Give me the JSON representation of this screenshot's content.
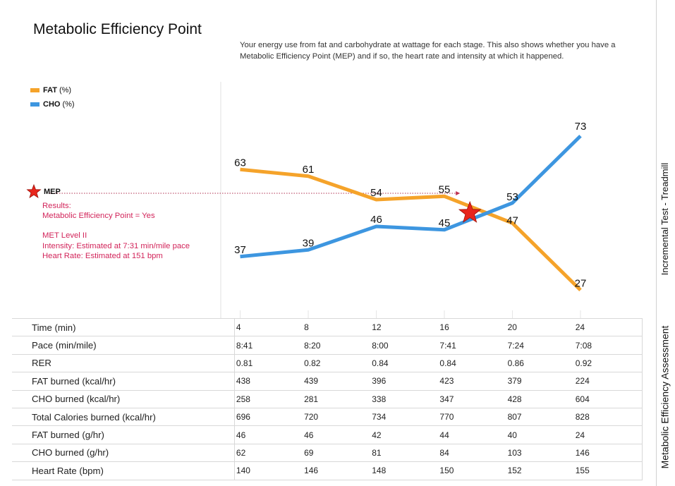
{
  "header": {
    "title": "Metabolic Efficiency Point",
    "subtitle": "Your energy use from fat and carbohydrate at wattage for each stage. This also shows whether you have a Metabolic Efficiency Point (MEP) and if so, the heart rate and intensity at which it happened."
  },
  "legend": {
    "fat_name": "FAT",
    "fat_unit": "(%)",
    "cho_name": "CHO",
    "cho_unit": "(%)"
  },
  "mep": {
    "label": "MEP",
    "results_label": "Results:",
    "mep_line": "Metabolic Efficiency Point = Yes",
    "met_level": "MET Level II",
    "intensity": "Intensity: Estimated at 7:31 min/mile pace",
    "heart_rate": "Heart Rate: Estimated at 151 bpm",
    "x_position_stage": 17.5,
    "value_pct": 50
  },
  "side_labels": {
    "test_type": "Incremental Test - Treadmill",
    "assessment": "Metabolic Efficiency Assessment"
  },
  "colors": {
    "fat": "#f5a32a",
    "cho": "#3d96e0",
    "mep_text": "#d2245a",
    "star": "#e8251c"
  },
  "chart_data": {
    "type": "line",
    "title": "Metabolic Efficiency Point",
    "x": [
      4,
      8,
      12,
      16,
      20,
      24
    ],
    "series": [
      {
        "name": "FAT",
        "unit": "(%)",
        "values": [
          63,
          61,
          54,
          55,
          47,
          27
        ]
      },
      {
        "name": "CHO",
        "unit": "(%)",
        "values": [
          37,
          39,
          46,
          45,
          53,
          73
        ]
      }
    ],
    "ylim": [
      0,
      100
    ],
    "grid": false,
    "legend": "top-left"
  },
  "table": {
    "rows": [
      {
        "label": "Time (min)",
        "values": [
          "4",
          "8",
          "12",
          "16",
          "20",
          "24"
        ]
      },
      {
        "label": "Pace (min/mile)",
        "values": [
          "8:41",
          "8:20",
          "8:00",
          "7:41",
          "7:24",
          "7:08"
        ]
      },
      {
        "label": "RER",
        "values": [
          "0.81",
          "0.82",
          "0.84",
          "0.84",
          "0.86",
          "0.92"
        ]
      },
      {
        "label": "FAT burned (kcal/hr)",
        "values": [
          "438",
          "439",
          "396",
          "423",
          "379",
          "224"
        ]
      },
      {
        "label": "CHO burned (kcal/hr)",
        "values": [
          "258",
          "281",
          "338",
          "347",
          "428",
          "604"
        ]
      },
      {
        "label": "Total Calories burned (kcal/hr)",
        "values": [
          "696",
          "720",
          "734",
          "770",
          "807",
          "828"
        ]
      },
      {
        "label": "FAT burned (g/hr)",
        "values": [
          "46",
          "46",
          "42",
          "44",
          "40",
          "24"
        ]
      },
      {
        "label": "CHO burned (g/hr)",
        "values": [
          "62",
          "69",
          "81",
          "84",
          "103",
          "146"
        ]
      },
      {
        "label": "Heart Rate (bpm)",
        "values": [
          "140",
          "146",
          "148",
          "150",
          "152",
          "155"
        ]
      }
    ]
  }
}
